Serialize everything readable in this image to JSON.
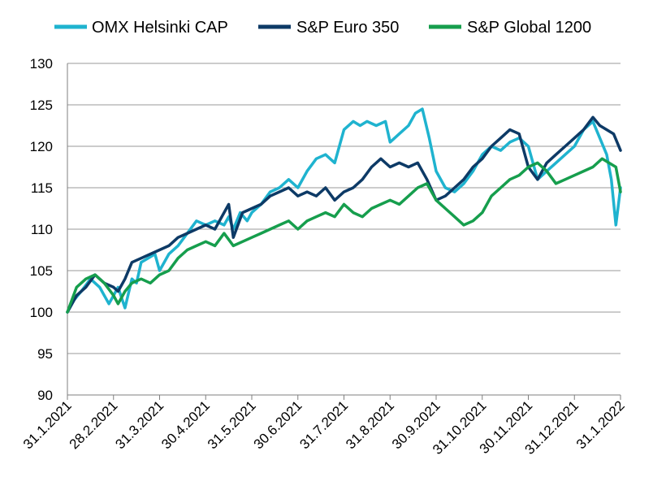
{
  "chart_data": {
    "type": "line",
    "title": "",
    "xlabel": "",
    "ylabel": "",
    "ylim": [
      90,
      130
    ],
    "yticks": [
      90,
      95,
      100,
      105,
      110,
      115,
      120,
      125,
      130
    ],
    "xticks": [
      "31.1.2021",
      "28.2.2021",
      "31.3.2021",
      "30.4.2021",
      "31.5.2021",
      "30.6.2021",
      "31.7.2021",
      "31.8.2021",
      "30.9.2021",
      "31.10.2021",
      "30.11.2021",
      "31.12.2021",
      "31.1.2022"
    ],
    "grid": "horizontal",
    "legend_position": "top",
    "x_note": "x values are months since 31.1.2021 (0 = 31.1.2021, 12 = 31.1.2022)",
    "series": [
      {
        "name": "OMX Helsinki CAP",
        "color": "#1FB3CF",
        "x": [
          0,
          0.15,
          0.3,
          0.5,
          0.7,
          0.9,
          1.0,
          1.1,
          1.25,
          1.4,
          1.5,
          1.6,
          1.75,
          1.9,
          2.0,
          2.2,
          2.4,
          2.6,
          2.8,
          3.0,
          3.2,
          3.4,
          3.5,
          3.6,
          3.75,
          3.9,
          4.0,
          4.2,
          4.4,
          4.6,
          4.8,
          5.0,
          5.2,
          5.4,
          5.6,
          5.8,
          6.0,
          6.2,
          6.35,
          6.5,
          6.7,
          6.9,
          7.0,
          7.2,
          7.4,
          7.55,
          7.7,
          7.85,
          8.0,
          8.2,
          8.4,
          8.6,
          8.8,
          9.0,
          9.2,
          9.4,
          9.6,
          9.8,
          10.0,
          10.2,
          10.4,
          10.6,
          10.8,
          11.0,
          11.2,
          11.4,
          11.55,
          11.7,
          11.8,
          11.9,
          12.0
        ],
        "values": [
          100,
          101.5,
          102.5,
          104,
          103,
          101,
          102,
          103,
          100.5,
          104,
          103.5,
          106,
          106.5,
          107,
          105,
          107,
          108,
          109.5,
          111,
          110.5,
          111,
          110.5,
          111.5,
          110,
          112,
          111,
          112,
          113,
          114.5,
          115,
          116,
          115,
          117,
          118.5,
          119,
          118,
          122,
          123,
          122.5,
          123,
          122.5,
          123,
          120.5,
          121.5,
          122.5,
          124,
          124.5,
          121,
          117,
          115,
          114.5,
          115.5,
          117,
          119,
          120,
          119.5,
          120.5,
          121,
          120,
          116,
          117,
          118,
          119,
          120,
          122,
          123,
          121,
          119,
          116,
          110.5,
          115
        ]
      },
      {
        "name": "S&P Euro 350",
        "color": "#0D3A66",
        "x": [
          0,
          0.2,
          0.4,
          0.6,
          0.8,
          1.0,
          1.1,
          1.25,
          1.4,
          1.6,
          1.8,
          2.0,
          2.2,
          2.4,
          2.6,
          2.8,
          3.0,
          3.2,
          3.4,
          3.5,
          3.6,
          3.8,
          4.0,
          4.2,
          4.4,
          4.6,
          4.8,
          5.0,
          5.2,
          5.4,
          5.6,
          5.8,
          6.0,
          6.2,
          6.4,
          6.6,
          6.8,
          7.0,
          7.2,
          7.4,
          7.6,
          7.8,
          8.0,
          8.2,
          8.4,
          8.6,
          8.8,
          9.0,
          9.2,
          9.4,
          9.6,
          9.8,
          10.0,
          10.2,
          10.4,
          10.6,
          10.8,
          11.0,
          11.2,
          11.4,
          11.55,
          11.7,
          11.85,
          12.0
        ],
        "values": [
          100,
          102,
          103,
          104.5,
          103.5,
          103,
          102.5,
          104,
          106,
          106.5,
          107,
          107.5,
          108,
          109,
          109.5,
          110,
          110.5,
          110,
          112,
          113,
          109,
          112,
          112.5,
          113,
          114,
          114.5,
          115,
          114,
          114.5,
          114,
          115,
          113.5,
          114.5,
          115,
          116,
          117.5,
          118.5,
          117.5,
          118,
          117.5,
          118,
          116,
          113.5,
          114,
          115,
          116,
          117.5,
          118.5,
          120,
          121,
          122,
          121.5,
          117.5,
          116,
          118,
          119,
          120,
          121,
          122,
          123.5,
          122.5,
          122,
          121.5,
          119.5
        ]
      },
      {
        "name": "S&P Global 1200",
        "color": "#169E4D",
        "x": [
          0,
          0.2,
          0.4,
          0.6,
          0.8,
          1.0,
          1.1,
          1.25,
          1.4,
          1.6,
          1.8,
          2.0,
          2.2,
          2.4,
          2.6,
          2.8,
          3.0,
          3.2,
          3.4,
          3.6,
          3.8,
          4.0,
          4.2,
          4.4,
          4.6,
          4.8,
          5.0,
          5.2,
          5.4,
          5.6,
          5.8,
          6.0,
          6.2,
          6.4,
          6.6,
          6.8,
          7.0,
          7.2,
          7.4,
          7.6,
          7.8,
          8.0,
          8.2,
          8.4,
          8.6,
          8.8,
          9.0,
          9.2,
          9.4,
          9.6,
          9.8,
          10.0,
          10.2,
          10.4,
          10.6,
          10.8,
          11.0,
          11.2,
          11.4,
          11.6,
          11.75,
          11.9,
          12.0
        ],
        "values": [
          100,
          103,
          104,
          104.5,
          103.5,
          102,
          101,
          102.5,
          103.5,
          104,
          103.5,
          104.5,
          105,
          106.5,
          107.5,
          108,
          108.5,
          108,
          109.5,
          108,
          108.5,
          109,
          109.5,
          110,
          110.5,
          111,
          110,
          111,
          111.5,
          112,
          111.5,
          113,
          112,
          111.5,
          112.5,
          113,
          113.5,
          113,
          114,
          115,
          115.5,
          113.5,
          112.5,
          111.5,
          110.5,
          111,
          112,
          114,
          115,
          116,
          116.5,
          117.5,
          118,
          117,
          115.5,
          116,
          116.5,
          117,
          117.5,
          118.5,
          118,
          117.5,
          114.5
        ]
      }
    ]
  }
}
